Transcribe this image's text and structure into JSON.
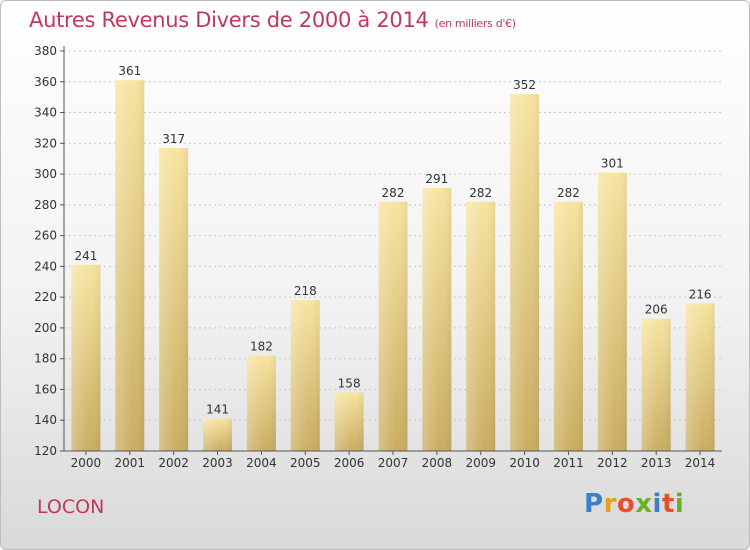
{
  "header": {
    "title": "Autres Revenus Divers de 2000 à 2014",
    "unit": "(en milliers d'€)"
  },
  "footer": {
    "commune": "LOCON",
    "logo_text": "Proxiti"
  },
  "colors": {
    "title": "#c0395a",
    "bar_top": "#f7e4a0",
    "bar_bottom": "#c9ad62"
  },
  "chart_data": {
    "type": "bar",
    "title": "Autres Revenus Divers de 2000 à 2014",
    "subtitle": "(en milliers d'€)",
    "xlabel": "",
    "ylabel": "",
    "categories": [
      "2000",
      "2001",
      "2002",
      "2003",
      "2004",
      "2005",
      "2006",
      "2007",
      "2008",
      "2009",
      "2010",
      "2011",
      "2012",
      "2013",
      "2014"
    ],
    "values": [
      241,
      361,
      317,
      141,
      182,
      218,
      158,
      282,
      291,
      282,
      352,
      282,
      301,
      206,
      216
    ],
    "ylim": [
      120,
      380
    ],
    "yticks": [
      120,
      140,
      160,
      180,
      200,
      220,
      240,
      260,
      280,
      300,
      320,
      340,
      360,
      380
    ],
    "grid": true,
    "data_labels": true
  }
}
